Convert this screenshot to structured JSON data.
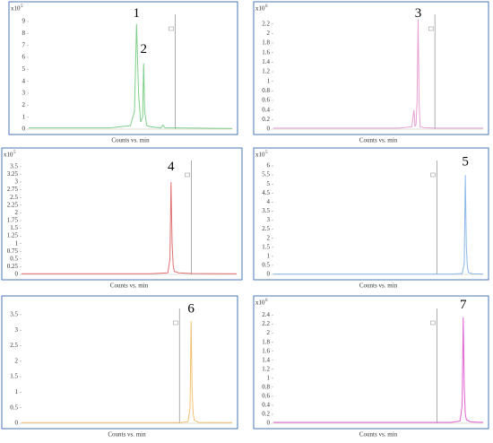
{
  "chart_data": [
    {
      "type": "line",
      "xlabel": "Counts vs. min",
      "y_scale": "x10",
      "y_exponent": "5",
      "xlim": [
        0,
        100
      ],
      "ylim": [
        0,
        9.6
      ],
      "yticks": [
        0,
        1,
        2,
        3,
        4,
        5,
        6,
        7,
        8,
        9
      ],
      "cursor_x": 72,
      "series": [
        {
          "color": "#7fcf8a",
          "x": [
            0,
            40,
            50,
            52,
            53,
            54,
            55,
            56,
            56.5,
            57,
            58,
            60,
            65,
            66,
            67,
            72,
            100
          ],
          "values": [
            0.1,
            0.1,
            0.3,
            1.5,
            8.8,
            3,
            0.6,
            1,
            5.5,
            1.5,
            0.3,
            0.2,
            0.1,
            0.35,
            0.1,
            0.1,
            0.05
          ]
        }
      ],
      "annotations": [
        {
          "text": "1",
          "x": 53,
          "y": 9.2
        },
        {
          "text": "2",
          "x": 56.5,
          "y": 6.2
        }
      ]
    },
    {
      "type": "line",
      "xlabel": "Counts vs. min",
      "y_scale": "x10",
      "y_exponent": "6",
      "xlim": [
        0,
        100
      ],
      "ylim": [
        0,
        2.4
      ],
      "yticks": [
        0,
        0.2,
        0.4,
        0.6,
        0.8,
        1,
        1.2,
        1.4,
        1.6,
        1.8,
        2,
        2.2
      ],
      "cursor_x": 77,
      "series": [
        {
          "color": "#e6a0d4",
          "x": [
            0,
            60,
            66,
            67,
            67.5,
            68,
            68.5,
            69,
            69.5,
            70,
            72,
            77,
            100
          ],
          "values": [
            0.02,
            0.02,
            0.05,
            0.4,
            0.05,
            0.1,
            0.6,
            2.3,
            0.5,
            0.05,
            0.03,
            0.02,
            0.02
          ]
        }
      ],
      "annotations": [
        {
          "text": "3",
          "x": 69,
          "y": 2.3
        }
      ]
    },
    {
      "type": "line",
      "xlabel": "Counts vs. min",
      "y_scale": "x10",
      "y_exponent": "5",
      "xlim": [
        0,
        100
      ],
      "ylim": [
        0,
        3.7
      ],
      "yticks": [
        0,
        0.25,
        0.5,
        0.75,
        1,
        1.25,
        1.5,
        1.75,
        2,
        2.25,
        2.5,
        2.75,
        3,
        3.25,
        3.5
      ],
      "cursor_x": 79,
      "series": [
        {
          "color": "#e07070",
          "x": [
            0,
            60,
            68,
            69,
            69.5,
            70,
            70.5,
            71,
            73,
            79,
            100
          ],
          "values": [
            0.02,
            0.02,
            0.05,
            0.5,
            3.0,
            1.0,
            0.3,
            0.1,
            0.05,
            0.03,
            0.02
          ]
        }
      ],
      "annotations": [
        {
          "text": "4",
          "x": 69.5,
          "y": 3.3
        }
      ]
    },
    {
      "type": "line",
      "xlabel": "Counts vs. min",
      "y_scale": "x10",
      "y_exponent": "5",
      "xlim": [
        0,
        100
      ],
      "ylim": [
        0,
        6.3
      ],
      "yticks": [
        0,
        0.5,
        1,
        1.5,
        2,
        2.5,
        3,
        3.5,
        4,
        4.5,
        5,
        5.5,
        6
      ],
      "cursor_x": 78,
      "series": [
        {
          "color": "#8ab8e8",
          "x": [
            0,
            85,
            90,
            91,
            91.5,
            92,
            92.5,
            93,
            95,
            100
          ],
          "values": [
            0.02,
            0.02,
            0.05,
            0.6,
            5.5,
            1.5,
            0.4,
            0.1,
            0.03,
            0.02
          ]
        }
      ],
      "annotations": [
        {
          "text": "5",
          "x": 91.5,
          "y": 5.9
        }
      ]
    },
    {
      "type": "line",
      "xlabel": "Counts vs. min",
      "xlim": [
        0,
        100
      ],
      "ylim": [
        0,
        3.7
      ],
      "yticks": [
        0,
        0.5,
        1,
        1.5,
        2,
        2.5,
        3,
        3.5
      ],
      "cursor_x": 75,
      "series": [
        {
          "color": "#f0c070",
          "x": [
            0,
            75,
            79,
            80,
            80.5,
            81,
            81.5,
            82,
            84,
            100
          ],
          "values": [
            0.02,
            0.02,
            0.05,
            0.5,
            3.3,
            1.0,
            0.3,
            0.1,
            0.03,
            0.02
          ]
        }
      ],
      "annotations": [
        {
          "text": "6",
          "x": 80.5,
          "y": 3.5
        }
      ]
    },
    {
      "type": "line",
      "xlabel": "Counts vs. min",
      "y_scale": "x10",
      "y_exponent": "6",
      "xlim": [
        0,
        100
      ],
      "ylim": [
        0,
        2.55
      ],
      "yticks": [
        0,
        0.2,
        0.4,
        0.6,
        0.8,
        1,
        1.2,
        1.4,
        1.6,
        1.8,
        2,
        2.2,
        2.4
      ],
      "cursor_x": 78,
      "series": [
        {
          "color": "#e060d0",
          "x": [
            0,
            85,
            89,
            90,
            90.5,
            91,
            91.5,
            92,
            94,
            100
          ],
          "values": [
            0.02,
            0.02,
            0.05,
            0.4,
            2.35,
            0.8,
            0.2,
            0.08,
            0.03,
            0.02
          ]
        }
      ],
      "annotations": [
        {
          "text": "7",
          "x": 90.5,
          "y": 2.5
        }
      ]
    }
  ]
}
